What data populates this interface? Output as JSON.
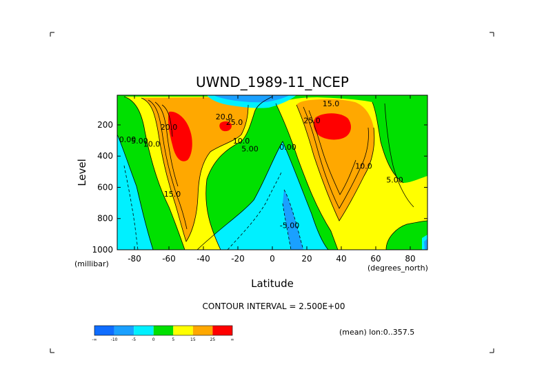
{
  "chart_data": {
    "type": "contour",
    "title": "UWND_1989-11_NCEP",
    "xlabel": "Latitude",
    "ylabel": "Level",
    "x_unit_label": "(degrees_north)",
    "y_unit_label": "(millibar)",
    "xlim": [
      -90,
      90
    ],
    "ylim": [
      1000,
      10
    ],
    "x_ticks": [
      "-80",
      "-60",
      "-40",
      "-20",
      "0",
      "20",
      "40",
      "60",
      "80"
    ],
    "y_ticks": [
      "200",
      "400",
      "600",
      "800",
      "1000"
    ],
    "contour_interval_text": "CONTOUR INTERVAL = 2.500E+00",
    "mean_note": "(mean) lon:0..357.5",
    "colorbar": {
      "labels": [
        "-∞",
        "-10",
        "-5",
        "0",
        "5",
        "15",
        "25",
        "∞"
      ],
      "colors": [
        "#0f6dff",
        "#1aa0ff",
        "#00f0ff",
        "#00e000",
        "#ffff00",
        "#ffa800",
        "#ff0000"
      ]
    },
    "contour_labels": [
      {
        "text": "20.0",
        "lon": -28,
        "lev": 165
      },
      {
        "text": "25.0",
        "lon": -22,
        "lev": 200
      },
      {
        "text": "10.0",
        "lon": -18,
        "lev": 320
      },
      {
        "text": "5.00",
        "lon": -13,
        "lev": 370
      },
      {
        "text": "0.00",
        "lon": -84,
        "lev": 310
      },
      {
        "text": "5.00",
        "lon": -77,
        "lev": 320
      },
      {
        "text": "10.0",
        "lon": -70,
        "lev": 340
      },
      {
        "text": "20.0",
        "lon": -60,
        "lev": 230
      },
      {
        "text": "15.0",
        "lon": -58,
        "lev": 660
      },
      {
        "text": "0.00",
        "lon": 9,
        "lev": 360
      },
      {
        "text": "-5.00",
        "lon": 10,
        "lev": 860
      },
      {
        "text": "15.0",
        "lon": 34,
        "lev": 80
      },
      {
        "text": "25.0",
        "lon": 23,
        "lev": 190
      },
      {
        "text": "10.0",
        "lon": 53,
        "lev": 480
      },
      {
        "text": "5.00",
        "lon": 71,
        "lev": 570
      }
    ],
    "jet_maxima": [
      {
        "name": "southern jet core",
        "lon": -54,
        "lev": 200,
        "value_range": ">25"
      },
      {
        "name": "southern subtropical core",
        "lon": -30,
        "lev": 200,
        "value_range": ">25"
      },
      {
        "name": "northern jet core",
        "lon": 36,
        "lev": 200,
        "value_range": ">25"
      }
    ]
  }
}
